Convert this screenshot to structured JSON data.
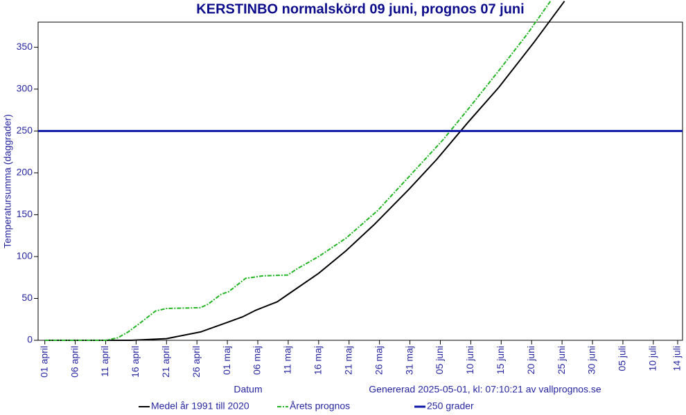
{
  "chart_data": {
    "type": "line",
    "title": "KERSTINBO normalskörd 09 juni, prognos 07 juni",
    "x_label": "Datum",
    "y_label": "Temperatursumma (daggrader)",
    "annotation": "Genererad 2025-05-01, kl: 07:10:21 av vallprognos.se",
    "xlim": [
      -1.1,
      104.8
    ],
    "ylim": [
      0,
      380
    ],
    "yticks": [
      0,
      50,
      100,
      150,
      200,
      250,
      300,
      350
    ],
    "xticks": [
      {
        "value": 0,
        "label": "01 april"
      },
      {
        "value": 5,
        "label": "06 april"
      },
      {
        "value": 10,
        "label": "11 april"
      },
      {
        "value": 15,
        "label": "16 april"
      },
      {
        "value": 20,
        "label": "21 april"
      },
      {
        "value": 25,
        "label": "26 april"
      },
      {
        "value": 30,
        "label": "01 maj"
      },
      {
        "value": 35,
        "label": "06 maj"
      },
      {
        "value": 40,
        "label": "11 maj"
      },
      {
        "value": 45,
        "label": "16 maj"
      },
      {
        "value": 50,
        "label": "21 maj"
      },
      {
        "value": 55,
        "label": "26 maj"
      },
      {
        "value": 60,
        "label": "31 maj"
      },
      {
        "value": 65,
        "label": "05 juni"
      },
      {
        "value": 70,
        "label": "10 juni"
      },
      {
        "value": 75,
        "label": "15 juni"
      },
      {
        "value": 80,
        "label": "20 juni"
      },
      {
        "value": 85,
        "label": "25 juni"
      },
      {
        "value": 90,
        "label": "30 juni"
      },
      {
        "value": 95,
        "label": "05 juli"
      },
      {
        "value": 100,
        "label": "10 juli"
      },
      {
        "value": 104,
        "label": "14 juli"
      }
    ],
    "series": [
      {
        "name": "Medel år 1991 till 2020",
        "color": "#000000",
        "dash": "none",
        "x": [
          0,
          10,
          14.2,
          20,
          25.6,
          30.2,
          32.5,
          34.7,
          38.2,
          40.4,
          45,
          49.5,
          54.1,
          59.8,
          64.4,
          69.5,
          74.6,
          80.3,
          85.4
        ],
        "values": [
          0,
          0,
          0,
          2,
          10,
          22,
          28,
          36,
          46,
          57,
          80,
          107,
          138,
          180,
          216,
          260,
          302,
          355,
          405
        ]
      },
      {
        "name": "Årets prognos",
        "color": "#22b422",
        "dash": "6 2 2 2",
        "x": [
          0,
          10,
          12,
          13.7,
          15.9,
          18.2,
          20,
          25.6,
          26.8,
          29,
          30.2,
          33,
          35.9,
          39.9,
          41.6,
          45,
          49.5,
          54.7,
          59.8,
          65.5,
          70,
          74.6,
          79.2,
          83.1
        ],
        "values": [
          0,
          0,
          3,
          10,
          22,
          35,
          38,
          39,
          43,
          55,
          58,
          74,
          77,
          78,
          86,
          100,
          122,
          155,
          195,
          240,
          280,
          322,
          365,
          405
        ]
      },
      {
        "name": "250 grader",
        "color": "#0a14a6",
        "dash": "none",
        "x": [
          -1.1,
          104.8
        ],
        "values": [
          250,
          250
        ]
      }
    ]
  }
}
